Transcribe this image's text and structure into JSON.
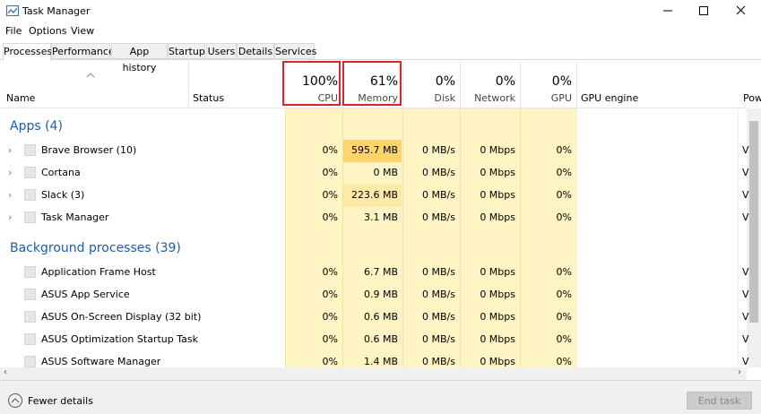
{
  "window": {
    "title": "Task Manager"
  },
  "menu": [
    "File",
    "Options",
    "View"
  ],
  "tabs": [
    "Processes",
    "Performance",
    "App history",
    "Startup",
    "Users",
    "Details",
    "Services"
  ],
  "columns": {
    "name": "Name",
    "status": "Status",
    "metrics": [
      {
        "percent": "100%",
        "label": "CPU"
      },
      {
        "percent": "61%",
        "label": "Memory"
      },
      {
        "percent": "0%",
        "label": "Disk"
      },
      {
        "percent": "0%",
        "label": "Network"
      },
      {
        "percent": "0%",
        "label": "GPU"
      }
    ],
    "gpu_engine": "GPU engine",
    "power": "Pow"
  },
  "groups": [
    {
      "title": "Apps (4)",
      "rows": [
        [
          "Brave Browser (10)",
          "0%",
          "595.7 MB",
          "0 MB/s",
          "0 Mbps",
          "0%",
          "V"
        ],
        [
          "Cortana",
          "0%",
          "0 MB",
          "0 MB/s",
          "0 Mbps",
          "0%",
          "V"
        ],
        [
          "Slack (3)",
          "0%",
          "223.6 MB",
          "0 MB/s",
          "0 Mbps",
          "0%",
          "V"
        ],
        [
          "Task Manager",
          "0%",
          "3.1 MB",
          "0 MB/s",
          "0 Mbps",
          "0%",
          "V"
        ]
      ]
    },
    {
      "title": "Background processes (39)",
      "rows": [
        [
          "Application Frame Host",
          "0%",
          "6.7 MB",
          "0 MB/s",
          "0 Mbps",
          "0%",
          "V"
        ],
        [
          "ASUS App Service",
          "0%",
          "0.9 MB",
          "0 MB/s",
          "0 Mbps",
          "0%",
          "V"
        ],
        [
          "ASUS On-Screen Display (32 bit)",
          "0%",
          "0.6 MB",
          "0 MB/s",
          "0 Mbps",
          "0%",
          "V"
        ],
        [
          "ASUS Optimization Startup Task",
          "0%",
          "0.6 MB",
          "0 MB/s",
          "0 Mbps",
          "0%",
          "V"
        ],
        [
          "ASUS Software Manager",
          "0%",
          "1.4 MB",
          "0 MB/s",
          "0 Mbps",
          "0%",
          "V"
        ]
      ]
    }
  ],
  "footer": {
    "fewer_details": "Fewer details",
    "end_task": "End task"
  }
}
